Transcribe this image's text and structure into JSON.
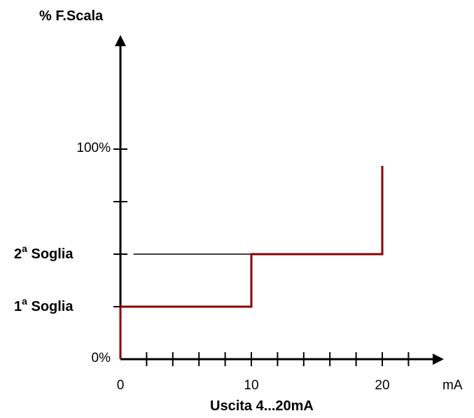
{
  "chart_data": {
    "type": "line",
    "title": "",
    "ylabel": "% F.Scala",
    "xlabel": "Uscita 4...20mA",
    "x_unit": "mA",
    "x_ticks": [
      {
        "value": 0,
        "label": "0"
      },
      {
        "value": 10,
        "label": "10"
      },
      {
        "value": 20,
        "label": "20"
      }
    ],
    "x_minor_step": 2,
    "xlim": [
      0,
      24
    ],
    "ylim": [
      0,
      135
    ],
    "y_tick_values": [
      0,
      25,
      50,
      75,
      100
    ],
    "y_ticks": [
      {
        "value": 0,
        "label": "0%"
      },
      {
        "value": 100,
        "label": "100%"
      }
    ],
    "thresholds": [
      {
        "value": 25,
        "prefix": "1",
        "superscript": "a",
        "suffix": " Soglia"
      },
      {
        "value": 50,
        "prefix": "2",
        "superscript": "a",
        "suffix": " Soglia"
      }
    ],
    "series": [
      {
        "color": "#8b0000",
        "points": [
          [
            0,
            0
          ],
          [
            0,
            25
          ],
          [
            10,
            25
          ],
          [
            10,
            50
          ],
          [
            20,
            50
          ],
          [
            20,
            92
          ]
        ]
      }
    ],
    "reference_lines": [
      {
        "color": "#000000",
        "points": [
          [
            1,
            50
          ],
          [
            10,
            50
          ]
        ]
      }
    ],
    "axis_color": "#000000"
  }
}
